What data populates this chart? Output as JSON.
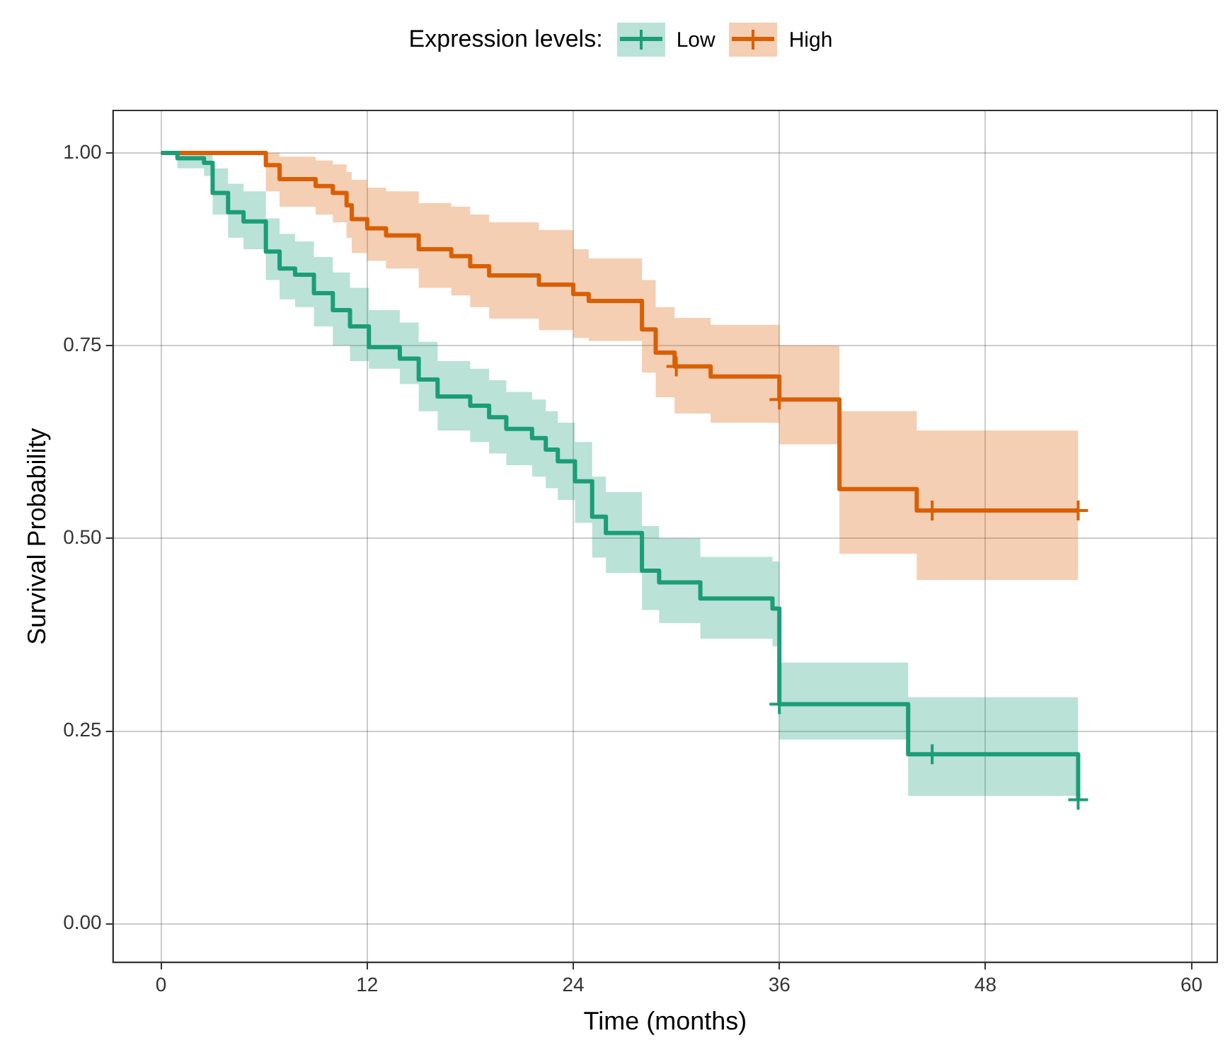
{
  "chart_data": {
    "type": "step",
    "xlabel": "Time (months)",
    "ylabel": "Survival Probability",
    "legend_title": "Expression levels:",
    "legend": "top",
    "grid": true,
    "xlim": [
      -2.8,
      61.5
    ],
    "ylim": [
      -0.05,
      1.055
    ],
    "xticks": [
      0,
      12,
      24,
      36,
      48,
      60
    ],
    "yticks": [
      {
        "value": 0,
        "label": "0.00"
      },
      {
        "value": 0.25,
        "label": "0.25"
      },
      {
        "value": 0.5,
        "label": "0.50"
      },
      {
        "value": 0.75,
        "label": "0.75"
      },
      {
        "value": 1,
        "label": "1.00"
      }
    ],
    "series": [
      {
        "name": "Low",
        "type": "step",
        "color": "#1b9e77",
        "x": [
          0,
          0.95,
          2.5,
          3.0,
          3.9,
          4.8,
          6.1,
          6.9,
          7.8,
          8.9,
          10.0,
          11.0,
          12.1,
          13.9,
          15.0,
          16.1,
          18.0,
          19.1,
          20.1,
          21.6,
          22.4,
          23.1,
          24.1,
          25.1,
          25.9,
          28.0,
          29.0,
          31.4,
          35.6,
          36.0,
          43.5,
          53.4
        ],
        "values": [
          1,
          0.993,
          0.987,
          0.948,
          0.923,
          0.911,
          0.872,
          0.85,
          0.842,
          0.818,
          0.796,
          0.775,
          0.748,
          0.733,
          0.706,
          0.684,
          0.672,
          0.657,
          0.642,
          0.63,
          0.615,
          0.6,
          0.574,
          0.528,
          0.507,
          0.458,
          0.443,
          0.422,
          0.409,
          0.285,
          0.22,
          0.161
        ],
        "lower": [
          1,
          0.98,
          0.97,
          0.92,
          0.89,
          0.875,
          0.835,
          0.81,
          0.8,
          0.775,
          0.75,
          0.73,
          0.72,
          0.7,
          0.665,
          0.64,
          0.625,
          0.61,
          0.595,
          0.58,
          0.565,
          0.55,
          0.52,
          0.475,
          0.455,
          0.407,
          0.39,
          0.37,
          0.36,
          0.239,
          0.166,
          0.166
        ],
        "upper": [
          1,
          1,
          1,
          0.98,
          0.96,
          0.95,
          0.915,
          0.895,
          0.885,
          0.865,
          0.845,
          0.825,
          0.796,
          0.78,
          0.755,
          0.73,
          0.72,
          0.705,
          0.69,
          0.68,
          0.665,
          0.65,
          0.625,
          0.58,
          0.56,
          0.516,
          0.5,
          0.476,
          0.47,
          0.339,
          0.294,
          0.294
        ]
      },
      {
        "name": "High",
        "type": "step",
        "color": "#d95f02",
        "x": [
          0,
          6.1,
          6.9,
          9.0,
          10.0,
          10.8,
          11.1,
          12.0,
          13.1,
          15.0,
          16.9,
          18.0,
          19.1,
          22.0,
          24.0,
          24.9,
          28.0,
          28.8,
          29.9,
          32.0,
          36.0,
          39.5,
          44.0,
          53.4
        ],
        "values": [
          1,
          0.984,
          0.966,
          0.957,
          0.948,
          0.932,
          0.914,
          0.902,
          0.893,
          0.875,
          0.866,
          0.853,
          0.841,
          0.829,
          0.817,
          0.808,
          0.771,
          0.741,
          0.723,
          0.71,
          0.68,
          0.564,
          0.536,
          0.536
        ],
        "lower": [
          1,
          0.95,
          0.93,
          0.92,
          0.91,
          0.89,
          0.87,
          0.86,
          0.85,
          0.825,
          0.815,
          0.8,
          0.785,
          0.77,
          0.76,
          0.756,
          0.715,
          0.683,
          0.662,
          0.65,
          0.622,
          0.48,
          0.446,
          0.446
        ],
        "upper": [
          1,
          1,
          0.995,
          0.99,
          0.985,
          0.975,
          0.965,
          0.955,
          0.95,
          0.935,
          0.93,
          0.92,
          0.91,
          0.9,
          0.875,
          0.863,
          0.835,
          0.8,
          0.786,
          0.777,
          0.75,
          0.665,
          0.64,
          0.64
        ]
      },
      {
        "type": "scatter",
        "marker": "cross",
        "color": "#1b9e77",
        "x": [
          36,
          44.9,
          53.4
        ],
        "values": [
          0.285,
          0.22,
          0.161
        ]
      },
      {
        "type": "scatter",
        "marker": "cross",
        "color": "#d95f02",
        "x": [
          30,
          36,
          44.9,
          53.4
        ],
        "values": [
          0.723,
          0.68,
          0.536,
          0.536
        ]
      }
    ]
  }
}
